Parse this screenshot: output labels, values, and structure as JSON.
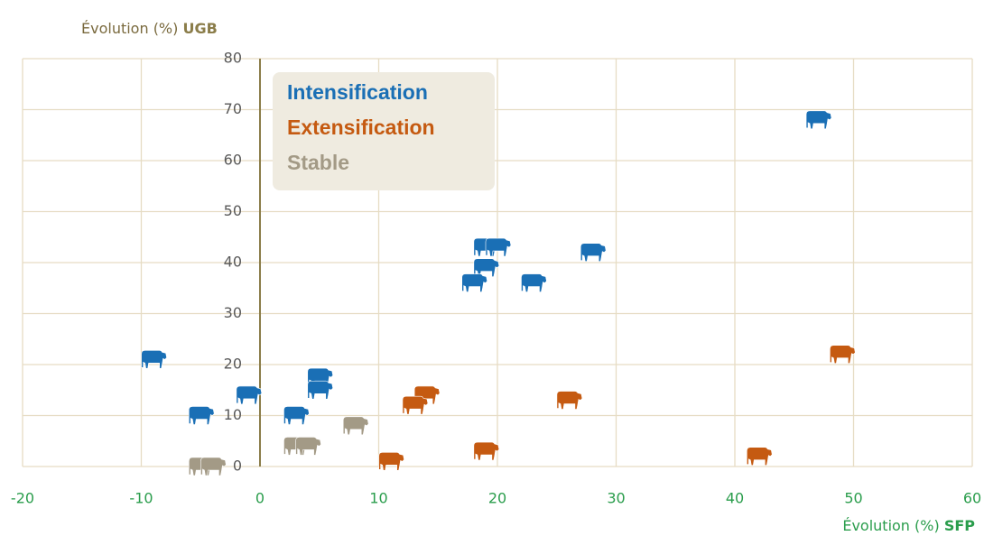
{
  "chart_data": {
    "type": "scatter",
    "x_label": [
      "Évolution (%)",
      "SFP"
    ],
    "y_label": [
      "Évolution (%)",
      "UGB"
    ],
    "xlim": [
      -20,
      60
    ],
    "xticks": [
      -20,
      -10,
      0,
      10,
      20,
      30,
      40,
      50,
      60
    ],
    "ylim": [
      0,
      80
    ],
    "yticks": [
      0,
      10,
      20,
      30,
      40,
      50,
      60,
      70,
      80
    ],
    "grid": true,
    "series": [
      {
        "name": "Intensification",
        "color": "#1a6fb5",
        "x": [
          47,
          19,
          20,
          19,
          18,
          23,
          28,
          -9,
          -5,
          -1,
          5,
          5,
          3
        ],
        "values": [
          68,
          43,
          43,
          39,
          36,
          36,
          42,
          21,
          10,
          14,
          17.5,
          15,
          10
        ]
      },
      {
        "name": "Extensification",
        "color": "#c55a11",
        "x": [
          49,
          14,
          13,
          26,
          11,
          19,
          42
        ],
        "values": [
          22,
          14,
          12,
          13,
          1,
          3,
          2
        ]
      },
      {
        "name": "Stable",
        "color": "#a39a86",
        "x": [
          -5,
          -4,
          3,
          4,
          8
        ],
        "values": [
          0,
          0,
          4,
          4,
          8
        ]
      }
    ]
  }
}
